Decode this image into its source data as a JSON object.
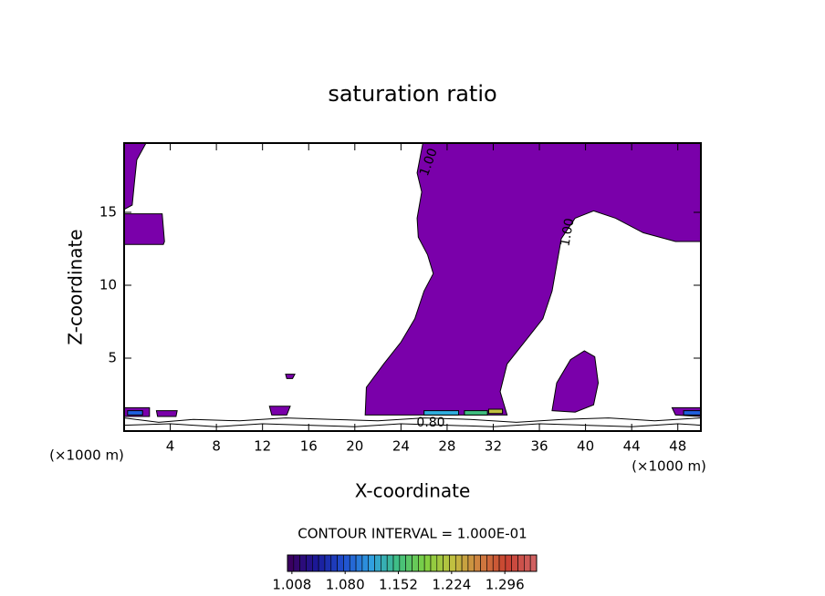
{
  "chart_data": {
    "type": "contour",
    "title": "saturation ratio",
    "xlabel": "X-coordinate",
    "ylabel": "Z-coordinate",
    "y_unit": "(×1000 m)",
    "x_unit": "(×1000 m)",
    "subtitle": "CONTOUR INTERVAL = 1.000E-01",
    "xlim": [
      0,
      50
    ],
    "ylim": [
      0,
      19.75
    ],
    "xticks": [
      4,
      8,
      12,
      16,
      20,
      24,
      28,
      32,
      36,
      40,
      44,
      48
    ],
    "yticks": [
      5,
      10,
      15
    ],
    "regions": [
      {
        "color": "#7a00aa",
        "x": [
          25.9,
          50,
          50,
          47.8,
          45,
          42.6,
          40.7,
          39.1,
          37.9,
          37.5,
          37.1,
          36.3,
          34.7,
          33.2,
          32.6,
          33.2,
          20.9,
          21,
          22.5,
          24,
          25.2,
          26,
          26.8,
          26.3,
          25.5,
          25.4,
          25.8,
          25.4
        ],
        "z": [
          19.75,
          19.75,
          13,
          13,
          13.6,
          14.6,
          15.1,
          14.6,
          13.2,
          11.4,
          9.6,
          7.7,
          6.1,
          4.6,
          2.7,
          1.1,
          1.1,
          3,
          4.6,
          6.1,
          7.7,
          9.6,
          10.8,
          12.1,
          13.3,
          14.6,
          16.4,
          17.7
        ]
      },
      {
        "color": "#7a00aa",
        "x": [
          0,
          1.9,
          1.1,
          0.9,
          0.7,
          0
        ],
        "z": [
          19.75,
          19.75,
          18.6,
          17.1,
          15.5,
          15.2
        ]
      },
      {
        "color": "#7a00aa",
        "x": [
          0,
          3.3,
          3.5,
          3.4,
          0
        ],
        "z": [
          14.9,
          14.9,
          13,
          12.8,
          12.8
        ]
      },
      {
        "color": "#7a00aa",
        "x": [
          37.1,
          37.5,
          38.7,
          39.9,
          40.8,
          41.1,
          40.7,
          39.1
        ],
        "z": [
          1.4,
          3.3,
          4.9,
          5.5,
          5.1,
          3.3,
          1.8,
          1.3
        ]
      },
      {
        "color": "#7a00aa",
        "x": [
          14,
          14.8,
          14.6,
          14.1
        ],
        "z": [
          3.9,
          3.9,
          3.6,
          3.6
        ]
      },
      {
        "color": "#7a00aa",
        "x": [
          0,
          2.2,
          2.2,
          0
        ],
        "z": [
          1.6,
          1.6,
          1,
          1
        ]
      },
      {
        "color": "#7a00aa",
        "x": [
          2.8,
          4.6,
          4.5,
          2.9
        ],
        "z": [
          1.4,
          1.4,
          1,
          1
        ]
      },
      {
        "color": "#7a00aa",
        "x": [
          12.6,
          14.4,
          14.1,
          12.8
        ],
        "z": [
          1.7,
          1.7,
          1.1,
          1.1
        ]
      },
      {
        "color": "#7a00aa",
        "x": [
          47.5,
          50,
          50,
          47.8
        ],
        "z": [
          1.6,
          1.6,
          1,
          1.1
        ]
      },
      {
        "color": "#2060e0",
        "x": [
          0.3,
          1.6,
          1.6,
          0.3
        ],
        "z": [
          1.4,
          1.4,
          1.1,
          1.1
        ]
      },
      {
        "color": "#30b0e0",
        "x": [
          26,
          29,
          29,
          26
        ],
        "z": [
          1.4,
          1.4,
          1.1,
          1.1
        ]
      },
      {
        "color": "#40c080",
        "x": [
          29.5,
          31.5,
          31.5,
          29.5
        ],
        "z": [
          1.4,
          1.4,
          1.1,
          1.1
        ]
      },
      {
        "color": "#c0c040",
        "x": [
          31.6,
          32.8,
          32.8,
          31.6
        ],
        "z": [
          1.5,
          1.5,
          1.2,
          1.2
        ]
      },
      {
        "color": "#2060e0",
        "x": [
          48.5,
          50,
          50,
          48.5
        ],
        "z": [
          1.4,
          1.4,
          1.1,
          1.1
        ]
      }
    ],
    "lines": [
      {
        "color": "#000000",
        "x": [
          0,
          3,
          6,
          10,
          14,
          18,
          22,
          26,
          30,
          34,
          38,
          42,
          46,
          50
        ],
        "z": [
          0.9,
          0.6,
          0.8,
          0.7,
          0.9,
          0.8,
          0.7,
          0.9,
          0.8,
          0.6,
          0.8,
          0.9,
          0.7,
          0.9
        ]
      },
      {
        "color": "#000000",
        "x": [
          0,
          4,
          8,
          12,
          16,
          20,
          24,
          28,
          32,
          36,
          40,
          44,
          48,
          50
        ],
        "z": [
          0.4,
          0.5,
          0.3,
          0.5,
          0.4,
          0.3,
          0.5,
          0.4,
          0.3,
          0.5,
          0.4,
          0.3,
          0.5,
          0.4
        ]
      }
    ],
    "contour_labels": [
      "1.00",
      "1.00",
      "0.80"
    ],
    "colorbar": {
      "lim": [
        1.002,
        1.339
      ],
      "ticks": [
        {
          "value": 1.008,
          "label": "1.008"
        },
        {
          "value": 1.08,
          "label": "1.080"
        },
        {
          "value": 1.152,
          "label": "1.152"
        },
        {
          "value": 1.224,
          "label": "1.224"
        },
        {
          "value": 1.296,
          "label": "1.296"
        }
      ],
      "colors": [
        "#3a0060",
        "#1a1a9a",
        "#2050d0",
        "#30a0e0",
        "#40c080",
        "#80d040",
        "#c0c040",
        "#d08040",
        "#c84030",
        "#d06060"
      ]
    }
  }
}
